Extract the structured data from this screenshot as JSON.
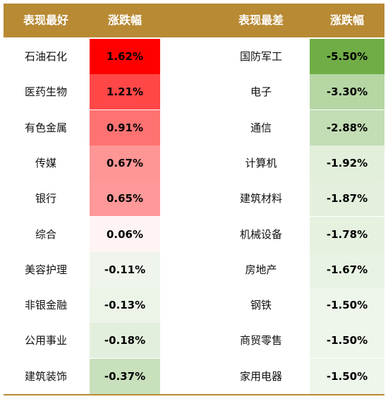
{
  "headers": {
    "best_label": "表现最好",
    "best_change": "涨跌幅",
    "worst_label": "表现最差",
    "worst_change": "涨跌幅"
  },
  "best": [
    {
      "name": "石油石化",
      "change": "1.62%",
      "color": "#ff0000"
    },
    {
      "name": "医药生物",
      "change": "1.21%",
      "color": "#ff4747"
    },
    {
      "name": "有色金属",
      "change": "0.91%",
      "color": "#ff7272"
    },
    {
      "name": "传媒",
      "change": "0.67%",
      "color": "#ff9696"
    },
    {
      "name": "银行",
      "change": "0.65%",
      "color": "#ff9999"
    },
    {
      "name": "综合",
      "change": "0.06%",
      "color": "#fff4f4"
    },
    {
      "name": "美容护理",
      "change": "-0.11%",
      "color": "#eff5ec"
    },
    {
      "name": "非银金融",
      "change": "-0.13%",
      "color": "#ecf4e8"
    },
    {
      "name": "公用事业",
      "change": "-0.18%",
      "color": "#e3efdd"
    },
    {
      "name": "建筑装饰",
      "change": "-0.37%",
      "color": "#c8e0bb"
    }
  ],
  "worst": [
    {
      "name": "国防军工",
      "change": "-5.50%",
      "color": "#70ad47"
    },
    {
      "name": "电子",
      "change": "-3.30%",
      "color": "#b6d6a4"
    },
    {
      "name": "通信",
      "change": "-2.88%",
      "color": "#c3ddb5"
    },
    {
      "name": "计算机",
      "change": "-1.92%",
      "color": "#e2efdb"
    },
    {
      "name": "建筑材料",
      "change": "-1.87%",
      "color": "#e4f0dd"
    },
    {
      "name": "机械设备",
      "change": "-1.78%",
      "color": "#e6f1e0"
    },
    {
      "name": "房地产",
      "change": "-1.67%",
      "color": "#e9f3e4"
    },
    {
      "name": "钢铁",
      "change": "-1.50%",
      "color": "#eef5ea"
    },
    {
      "name": "商贸零售",
      "change": "-1.50%",
      "color": "#eef5ea"
    },
    {
      "name": "家用电器",
      "change": "-1.50%",
      "color": "#eef5ea"
    }
  ]
}
